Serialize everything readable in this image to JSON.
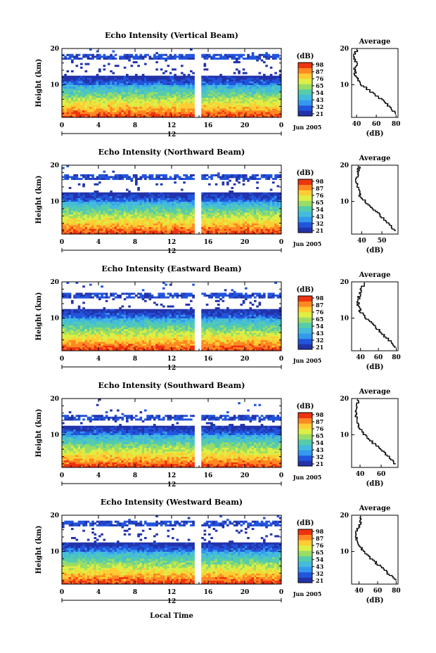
{
  "figure": {
    "xlabel": "Local Time",
    "date_label": "Jun 2005",
    "colors": {
      "scale": [
        "#2233aa",
        "#2255dd",
        "#3399ee",
        "#44bbdd",
        "#55ccaa",
        "#99dd66",
        "#ddee44",
        "#ffcc33",
        "#ff8822",
        "#ee3311"
      ],
      "missing": "#ffffff"
    }
  },
  "chart_data": [
    {
      "type": "heatmap",
      "title": "Echo Intensity (Vertical Beam)",
      "ylabel": "Height (km)",
      "xlim": [
        0,
        24
      ],
      "ylim": [
        1,
        20
      ],
      "xticks": [
        "0",
        "4",
        "8",
        "12",
        "16",
        "20",
        "0"
      ],
      "yticks": [
        "10",
        "20"
      ],
      "day_marker": "12",
      "date_label": "Jun 2005",
      "colorbar": {
        "label": "(dB)",
        "ticks": [
          "98",
          "87",
          "76",
          "65",
          "54",
          "43",
          "32",
          "21"
        ]
      },
      "gap_hours": [
        14.6,
        15.2
      ],
      "cloud_top_km": 18.5,
      "average_profile": {
        "title": "Average",
        "xlabel": "(dB)",
        "xticks": [
          "40",
          "60",
          "80"
        ],
        "xlim": [
          35,
          82
        ],
        "yticks": [
          "10",
          "20"
        ],
        "height_km": [
          2,
          4,
          6,
          8,
          10,
          12,
          14,
          16,
          18,
          20
        ],
        "db": [
          80,
          74,
          66,
          56,
          46,
          40,
          38,
          40,
          37,
          41
        ]
      }
    },
    {
      "type": "heatmap",
      "title": "Echo Intensity (Northward Beam)",
      "ylabel": "Height (km)",
      "xlim": [
        0,
        24
      ],
      "ylim": [
        1,
        20
      ],
      "xticks": [
        "0",
        "4",
        "8",
        "12",
        "16",
        "20",
        "0"
      ],
      "yticks": [
        "10",
        "20"
      ],
      "day_marker": "12",
      "date_label": "Jun 2005",
      "colorbar": {
        "label": "(dB)",
        "ticks": [
          "98",
          "87",
          "76",
          "65",
          "54",
          "43",
          "32",
          "21"
        ]
      },
      "gap_hours": [
        14.6,
        15.2
      ],
      "cloud_top_km": 17.6,
      "average_profile": {
        "title": "Average",
        "xlabel": "(dB)",
        "xticks": [
          "40",
          "50"
        ],
        "xlim": [
          35,
          58
        ],
        "yticks": [
          "10",
          "20"
        ],
        "height_km": [
          2,
          4,
          6,
          8,
          10,
          12,
          14,
          16,
          18,
          20
        ],
        "db": [
          57,
          53,
          50,
          46,
          42,
          39,
          38,
          37,
          38,
          39
        ]
      }
    },
    {
      "type": "heatmap",
      "title": "Echo Intensity (Eastward Beam)",
      "ylabel": "Height (km)",
      "xlim": [
        0,
        24
      ],
      "ylim": [
        1,
        20
      ],
      "xticks": [
        "0",
        "4",
        "8",
        "12",
        "16",
        "20",
        "0"
      ],
      "yticks": [
        "10",
        "20"
      ],
      "day_marker": "12",
      "date_label": "Jun 2005",
      "colorbar": {
        "label": "(dB)",
        "ticks": [
          "98",
          "87",
          "76",
          "65",
          "54",
          "43",
          "32",
          "21"
        ]
      },
      "gap_hours": [
        14.6,
        15.2
      ],
      "cloud_top_km": 17.0,
      "average_profile": {
        "title": "Average",
        "xlabel": "(dB)",
        "xticks": [
          "40",
          "60",
          "80"
        ],
        "xlim": [
          30,
          82
        ],
        "yticks": [
          "10",
          "20"
        ],
        "height_km": [
          2,
          4,
          6,
          8,
          10,
          12,
          14,
          16,
          18,
          20
        ],
        "db": [
          80,
          72,
          64,
          56,
          46,
          40,
          37,
          38,
          41,
          44
        ]
      }
    },
    {
      "type": "heatmap",
      "title": "Echo Intensity (Southward Beam)",
      "ylabel": "Height (km)",
      "xlim": [
        0,
        24
      ],
      "ylim": [
        1,
        20
      ],
      "xticks": [
        "0",
        "4",
        "8",
        "12",
        "16",
        "20",
        "0"
      ],
      "yticks": [
        "10",
        "20"
      ],
      "day_marker": "12",
      "date_label": "Jun 2005",
      "colorbar": {
        "label": "(dB)",
        "ticks": [
          "98",
          "87",
          "76",
          "65",
          "54",
          "43",
          "32",
          "21"
        ]
      },
      "gap_hours": [
        14.6,
        15.2
      ],
      "cloud_top_km": 15.6,
      "average_profile": {
        "title": "Average",
        "xlabel": "(dB)",
        "xticks": [
          "40",
          "60"
        ],
        "xlim": [
          32,
          76
        ],
        "yticks": [
          "10",
          "20"
        ],
        "height_km": [
          2,
          4,
          6,
          8,
          10,
          12,
          14,
          16,
          18,
          20
        ],
        "db": [
          74,
          68,
          60,
          52,
          45,
          40,
          37,
          36,
          37,
          38
        ]
      }
    },
    {
      "type": "heatmap",
      "title": "Echo Intensity (Westward Beam)",
      "ylabel": "Height (km)",
      "xlim": [
        0,
        24
      ],
      "ylim": [
        1,
        20
      ],
      "xticks": [
        "0",
        "4",
        "8",
        "12",
        "16",
        "20",
        "0"
      ],
      "yticks": [
        "10",
        "20"
      ],
      "day_marker": "12",
      "date_label": "Jun 2005",
      "colorbar": {
        "label": "(dB)",
        "ticks": [
          "98",
          "87",
          "76",
          "65",
          "54",
          "43",
          "32",
          "21"
        ]
      },
      "gap_hours": [
        14.6,
        15.2
      ],
      "cloud_top_km": 18.6,
      "average_profile": {
        "title": "Average",
        "xlabel": "(dB)",
        "xticks": [
          "40",
          "60",
          "80"
        ],
        "xlim": [
          32,
          82
        ],
        "yticks": [
          "10",
          "20"
        ],
        "height_km": [
          2,
          4,
          6,
          8,
          10,
          12,
          14,
          16,
          18,
          20
        ],
        "db": [
          80,
          72,
          63,
          54,
          45,
          40,
          37,
          38,
          42,
          40
        ]
      }
    }
  ]
}
